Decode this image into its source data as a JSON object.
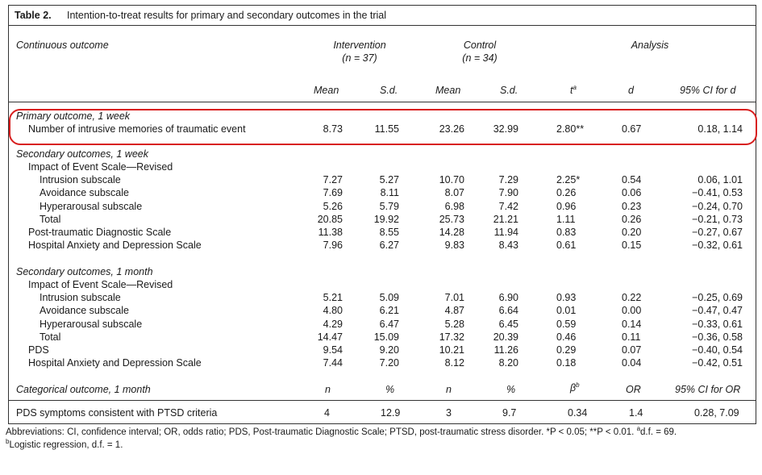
{
  "table": {
    "label": "Table 2.",
    "caption": "Intention-to-treat results for primary and secondary outcomes in the trial",
    "head": {
      "col0": "Continuous outcome",
      "intervention": "Intervention",
      "intervention_n": "(n = 37)",
      "control": "Control",
      "control_n": "(n = 34)",
      "analysis": "Analysis",
      "mean1": "Mean",
      "sd1": "S.d.",
      "mean2": "Mean",
      "sd2": "S.d.",
      "t": "t",
      "t_sup": "a",
      "d": "d",
      "ci": "95% CI for d"
    },
    "primary": {
      "heading": "Primary outcome, 1 week",
      "row": [
        "Number of intrusive memories of traumatic event",
        "8.73",
        "11.55",
        "23.26",
        "32.99",
        "2.80**",
        "0.67",
        "0.18, 1.14"
      ]
    },
    "week": {
      "heading": "Secondary outcomes, 1 week",
      "rows": [
        [
          "Impact of Event Scale—Revised",
          "",
          "",
          "",
          "",
          "",
          "",
          ""
        ],
        [
          "Intrusion subscale",
          "7.27",
          "5.27",
          "10.70",
          "7.29",
          "2.25*",
          "0.54",
          "0.06, 1.01"
        ],
        [
          "Avoidance subscale",
          "7.69",
          "8.11",
          "8.07",
          "7.90",
          "0.26",
          "0.06",
          "−0.41, 0.53"
        ],
        [
          "Hyperarousal subscale",
          "5.26",
          "5.79",
          "6.98",
          "7.42",
          "0.96",
          "0.23",
          "−0.24, 0.70"
        ],
        [
          "Total",
          "20.85",
          "19.92",
          "25.73",
          "21.21",
          "1.11",
          "0.26",
          "−0.21, 0.73"
        ],
        [
          "Post-traumatic Diagnostic Scale",
          "11.38",
          "8.55",
          "14.28",
          "11.94",
          "0.83",
          "0.20",
          "−0.27, 0.67"
        ],
        [
          "Hospital Anxiety and Depression Scale",
          "7.96",
          "6.27",
          "9.83",
          "8.43",
          "0.61",
          "0.15",
          "−0.32, 0.61"
        ]
      ]
    },
    "month": {
      "heading": "Secondary outcomes, 1 month",
      "rows": [
        [
          "Impact of Event Scale—Revised",
          "",
          "",
          "",
          "",
          "",
          "",
          ""
        ],
        [
          "Intrusion subscale",
          "5.21",
          "5.09",
          "7.01",
          "6.90",
          "0.93",
          "0.22",
          "−0.25, 0.69"
        ],
        [
          "Avoidance subscale",
          "4.80",
          "6.21",
          "4.87",
          "6.64",
          "0.01",
          "0.00",
          "−0.47, 0.47"
        ],
        [
          "Hyperarousal subscale",
          "4.29",
          "6.47",
          "5.28",
          "6.45",
          "0.59",
          "0.14",
          "−0.33, 0.61"
        ],
        [
          "Total",
          "14.47",
          "15.09",
          "17.32",
          "20.39",
          "0.46",
          "0.11",
          "−0.36, 0.58"
        ],
        [
          "PDS",
          "9.54",
          "9.20",
          "10.21",
          "11.26",
          "0.29",
          "0.07",
          "−0.40, 0.54"
        ],
        [
          "Hospital Anxiety and Depression Scale",
          "7.44",
          "7.20",
          "8.12",
          "8.20",
          "0.18",
          "0.04",
          "−0.42, 0.51"
        ]
      ]
    },
    "categorical": {
      "heading": "Categorical outcome, 1 month",
      "n1": "n",
      "pct1": "%",
      "n2": "n",
      "pct2": "%",
      "beta": "β",
      "beta_sup": "b",
      "or": "OR",
      "ci": "95% CI for OR",
      "row": [
        "PDS symptoms consistent with PTSD criteria",
        "4",
        "12.9",
        "3",
        "9.7",
        "0.34",
        "1.4",
        "0.28, 7.09"
      ]
    },
    "footnotes": {
      "line1": "Abbreviations: CI, confidence interval; OR, odds ratio; PDS, Post-traumatic Diagnostic Scale; PTSD, post-traumatic stress disorder. *P < 0.05; **P < 0.01. ",
      "line1_sup": "a",
      "line1_end": "d.f. = 69.",
      "line2_sup": "b",
      "line2": "Logistic regression, d.f. = 1."
    },
    "highlight_color": "#d81e1e"
  }
}
